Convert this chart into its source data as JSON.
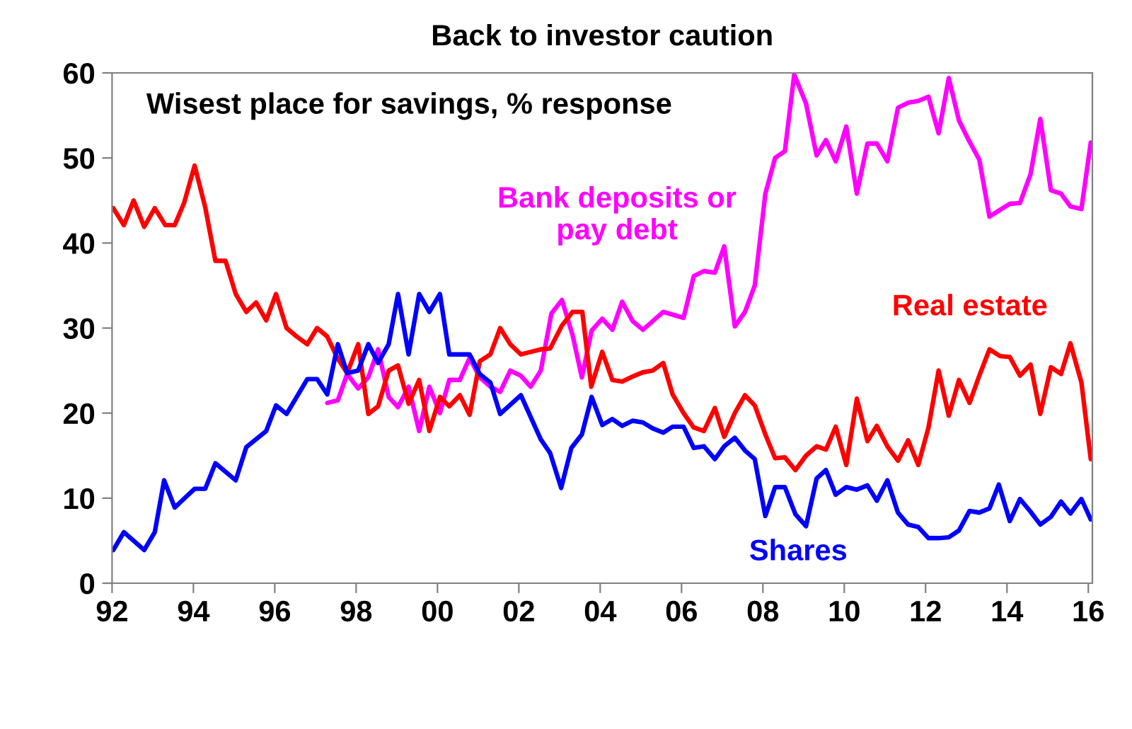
{
  "chart_data": {
    "type": "line",
    "title": "Back to investor caution",
    "annotations": [
      "Wisest place for savings, % response"
    ],
    "xlim": [
      1992,
      2016.1
    ],
    "ylim": [
      0,
      60
    ],
    "xticks": [
      {
        "value": 1992,
        "label": "92"
      },
      {
        "value": 1994,
        "label": "94"
      },
      {
        "value": 1996,
        "label": "96"
      },
      {
        "value": 1998,
        "label": "98"
      },
      {
        "value": 2000,
        "label": "00"
      },
      {
        "value": 2002,
        "label": "02"
      },
      {
        "value": 2004,
        "label": "04"
      },
      {
        "value": 2006,
        "label": "06"
      },
      {
        "value": 2008,
        "label": "08"
      },
      {
        "value": 2010,
        "label": "10"
      },
      {
        "value": 2012,
        "label": "12"
      },
      {
        "value": 2014,
        "label": "14"
      },
      {
        "value": 2016,
        "label": "16"
      }
    ],
    "yticks": [
      0,
      10,
      20,
      30,
      40,
      50,
      60
    ],
    "grid": false,
    "legend": false,
    "marker": "none",
    "line_style": "solid",
    "series": [
      {
        "name": "Bank deposits or pay debt",
        "color": "#ff00ff",
        "x": [
          1997.29,
          1997.55,
          1997.78,
          1998.05,
          1998.3,
          1998.54,
          1998.8,
          1999.03,
          1999.29,
          1999.55,
          1999.8,
          2000.06,
          2000.29,
          2000.55,
          2000.79,
          2001.04,
          2001.3,
          2001.54,
          2001.79,
          2002.05,
          2002.29,
          2002.54,
          2002.8,
          2003.06,
          2003.32,
          2003.55,
          2003.79,
          2004.05,
          2004.3,
          2004.54,
          2004.8,
          2005.05,
          2005.29,
          2005.55,
          2006.05,
          2006.3,
          2006.55,
          2006.82,
          2007.05,
          2007.31,
          2007.56,
          2007.8,
          2008.06,
          2008.3,
          2008.54,
          2008.77,
          2009.06,
          2009.32,
          2009.55,
          2009.79,
          2010.05,
          2010.31,
          2010.57,
          2010.8,
          2011.06,
          2011.32,
          2011.57,
          2011.82,
          2012.07,
          2012.32,
          2012.57,
          2012.82,
          2013.08,
          2013.32,
          2013.57,
          2013.83,
          2014.07,
          2014.32,
          2014.58,
          2014.82,
          2015.08,
          2015.33,
          2015.56,
          2015.83,
          2016.06
        ],
        "values": [
          21.2,
          21.5,
          24.6,
          22.9,
          24.2,
          27.5,
          21.9,
          20.7,
          23.1,
          17.9,
          23.1,
          20,
          23.9,
          23.9,
          26.5,
          24.2,
          23.1,
          22.5,
          25,
          24.4,
          23.1,
          25,
          31.7,
          33.3,
          29.2,
          24.2,
          29.7,
          31.1,
          29.8,
          33.1,
          30.8,
          29.8,
          30.8,
          31.9,
          31.2,
          36.1,
          36.7,
          36.5,
          39.6,
          30.2,
          31.9,
          35,
          45.8,
          50,
          50.8,
          59.8,
          56.4,
          50.3,
          52.1,
          49.6,
          53.7,
          45.8,
          51.7,
          51.7,
          49.6,
          55.9,
          56.5,
          56.7,
          57.2,
          52.9,
          59.4,
          54.4,
          51.9,
          49.8,
          43.1,
          43.9,
          44.6,
          44.7,
          48.1,
          54.6,
          46.2,
          45.8,
          44.3,
          44,
          51.8
        ]
      },
      {
        "name": "Real estate",
        "color": "#ff0000",
        "x": [
          1992.03,
          1992.29,
          1992.53,
          1992.79,
          1993.05,
          1993.31,
          1993.54,
          1993.77,
          1994.03,
          1994.29,
          1994.54,
          1994.79,
          1995.04,
          1995.3,
          1995.54,
          1995.79,
          1996.03,
          1996.29,
          1996.54,
          1996.8,
          1997.04,
          1997.29,
          1997.55,
          1997.78,
          1998.05,
          1998.3,
          1998.54,
          1998.8,
          1999.03,
          1999.29,
          1999.55,
          1999.8,
          2000.06,
          2000.29,
          2000.55,
          2000.79,
          2001.04,
          2001.3,
          2001.54,
          2001.79,
          2002.05,
          2002.54,
          2002.77,
          2003.06,
          2003.32,
          2003.56,
          2003.78,
          2004.05,
          2004.3,
          2004.54,
          2004.8,
          2005.05,
          2005.29,
          2005.55,
          2005.78,
          2006.05,
          2006.3,
          2006.55,
          2006.82,
          2007.05,
          2007.31,
          2007.56,
          2007.8,
          2008.06,
          2008.3,
          2008.54,
          2008.8,
          2009.06,
          2009.32,
          2009.55,
          2009.79,
          2010.05,
          2010.31,
          2010.57,
          2010.8,
          2011.06,
          2011.32,
          2011.57,
          2011.82,
          2012.07,
          2012.32,
          2012.57,
          2012.82,
          2013.08,
          2013.32,
          2013.57,
          2013.83,
          2014.07,
          2014.32,
          2014.58,
          2014.82,
          2015.08,
          2015.33,
          2015.56,
          2015.83,
          2016.06
        ],
        "values": [
          44.1,
          42.1,
          45,
          41.9,
          44.1,
          42.1,
          42.1,
          44.7,
          49.1,
          44.2,
          37.9,
          37.9,
          34,
          31.9,
          33,
          30.9,
          34,
          30,
          29,
          28.1,
          30,
          29,
          26.4,
          24.7,
          28.1,
          19.9,
          20.8,
          25,
          25.6,
          21.1,
          23.9,
          17.9,
          21.9,
          20.8,
          22.1,
          19.8,
          26.1,
          26.9,
          30,
          28.1,
          26.9,
          27.5,
          27.6,
          30.3,
          31.9,
          31.9,
          23.1,
          27.2,
          23.9,
          23.7,
          24.3,
          24.8,
          25,
          25.9,
          22.2,
          20,
          18.3,
          17.9,
          20.6,
          17.2,
          20,
          22.1,
          20.9,
          17.5,
          14.7,
          14.8,
          13.3,
          15,
          16.1,
          15.7,
          18.4,
          13.9,
          21.7,
          16.7,
          18.5,
          16.1,
          14.4,
          16.8,
          13.9,
          18.3,
          25,
          19.7,
          23.9,
          21.2,
          24.4,
          27.5,
          26.7,
          26.6,
          24.4,
          25.7,
          19.9,
          25.4,
          24.6,
          28.2,
          23.6,
          14.6
        ]
      },
      {
        "name": "Shares",
        "color": "#0000ff",
        "x": [
          1992.03,
          1992.29,
          1992.79,
          1993.05,
          1993.28,
          1993.54,
          1994.03,
          1994.29,
          1994.54,
          1995.04,
          1995.3,
          1995.79,
          1996.03,
          1996.29,
          1996.8,
          1997.04,
          1997.29,
          1997.55,
          1997.78,
          1998.05,
          1998.3,
          1998.54,
          1998.8,
          1999.03,
          1999.29,
          1999.55,
          1999.8,
          2000.06,
          2000.29,
          2000.79,
          2001.04,
          2001.3,
          2001.54,
          2002.05,
          2002.54,
          2002.77,
          2003.04,
          2003.29,
          2003.55,
          2003.79,
          2004.05,
          2004.3,
          2004.54,
          2004.8,
          2005.05,
          2005.29,
          2005.55,
          2005.78,
          2006.05,
          2006.3,
          2006.55,
          2006.82,
          2007.05,
          2007.31,
          2007.56,
          2007.8,
          2008.06,
          2008.3,
          2008.54,
          2008.8,
          2009.06,
          2009.32,
          2009.55,
          2009.79,
          2010.05,
          2010.31,
          2010.57,
          2010.8,
          2011.06,
          2011.32,
          2011.57,
          2011.82,
          2012.07,
          2012.32,
          2012.57,
          2012.82,
          2013.08,
          2013.32,
          2013.57,
          2013.8,
          2014.07,
          2014.32,
          2014.58,
          2014.82,
          2015.08,
          2015.33,
          2015.56,
          2015.83,
          2016.06
        ],
        "values": [
          3.9,
          6,
          3.9,
          6,
          12.1,
          8.9,
          11.1,
          11.1,
          14.1,
          12.1,
          16,
          17.9,
          20.9,
          19.9,
          24,
          24,
          22.2,
          28.1,
          24.7,
          25,
          28.1,
          25.9,
          28.1,
          34,
          26.9,
          34,
          31.9,
          34,
          26.9,
          26.9,
          24.6,
          23.6,
          19.9,
          22.1,
          16.9,
          15.3,
          11.2,
          15.9,
          17.5,
          21.9,
          18.6,
          19.3,
          18.5,
          19.1,
          18.9,
          18.2,
          17.7,
          18.4,
          18.4,
          15.9,
          16.1,
          14.6,
          16.1,
          17.1,
          15.6,
          14.6,
          7.9,
          11.3,
          11.3,
          8.1,
          6.7,
          12.3,
          13.3,
          10.4,
          11.3,
          11,
          11.5,
          9.7,
          12.1,
          8.3,
          6.9,
          6.6,
          5.3,
          5.3,
          5.4,
          6.2,
          8.5,
          8.3,
          8.8,
          11.6,
          7.3,
          9.9,
          8.4,
          6.9,
          7.8,
          9.6,
          8.2,
          9.9,
          7.5
        ]
      }
    ]
  }
}
